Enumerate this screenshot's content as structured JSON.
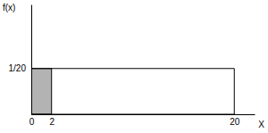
{
  "chart_data": {
    "type": "area",
    "x_label": "X",
    "y_label": "f(x)",
    "x": [
      0,
      20
    ],
    "values": [
      0.05,
      0.05
    ],
    "shade_x": [
      0,
      2
    ],
    "color": "#b3b3b3",
    "xlim": [
      0,
      22
    ],
    "xticks": [
      0,
      2,
      20
    ],
    "ylim": [
      0,
      0.12
    ],
    "yticks": [
      {
        "value": 0.05,
        "label": "1/20"
      }
    ],
    "grid": false
  }
}
